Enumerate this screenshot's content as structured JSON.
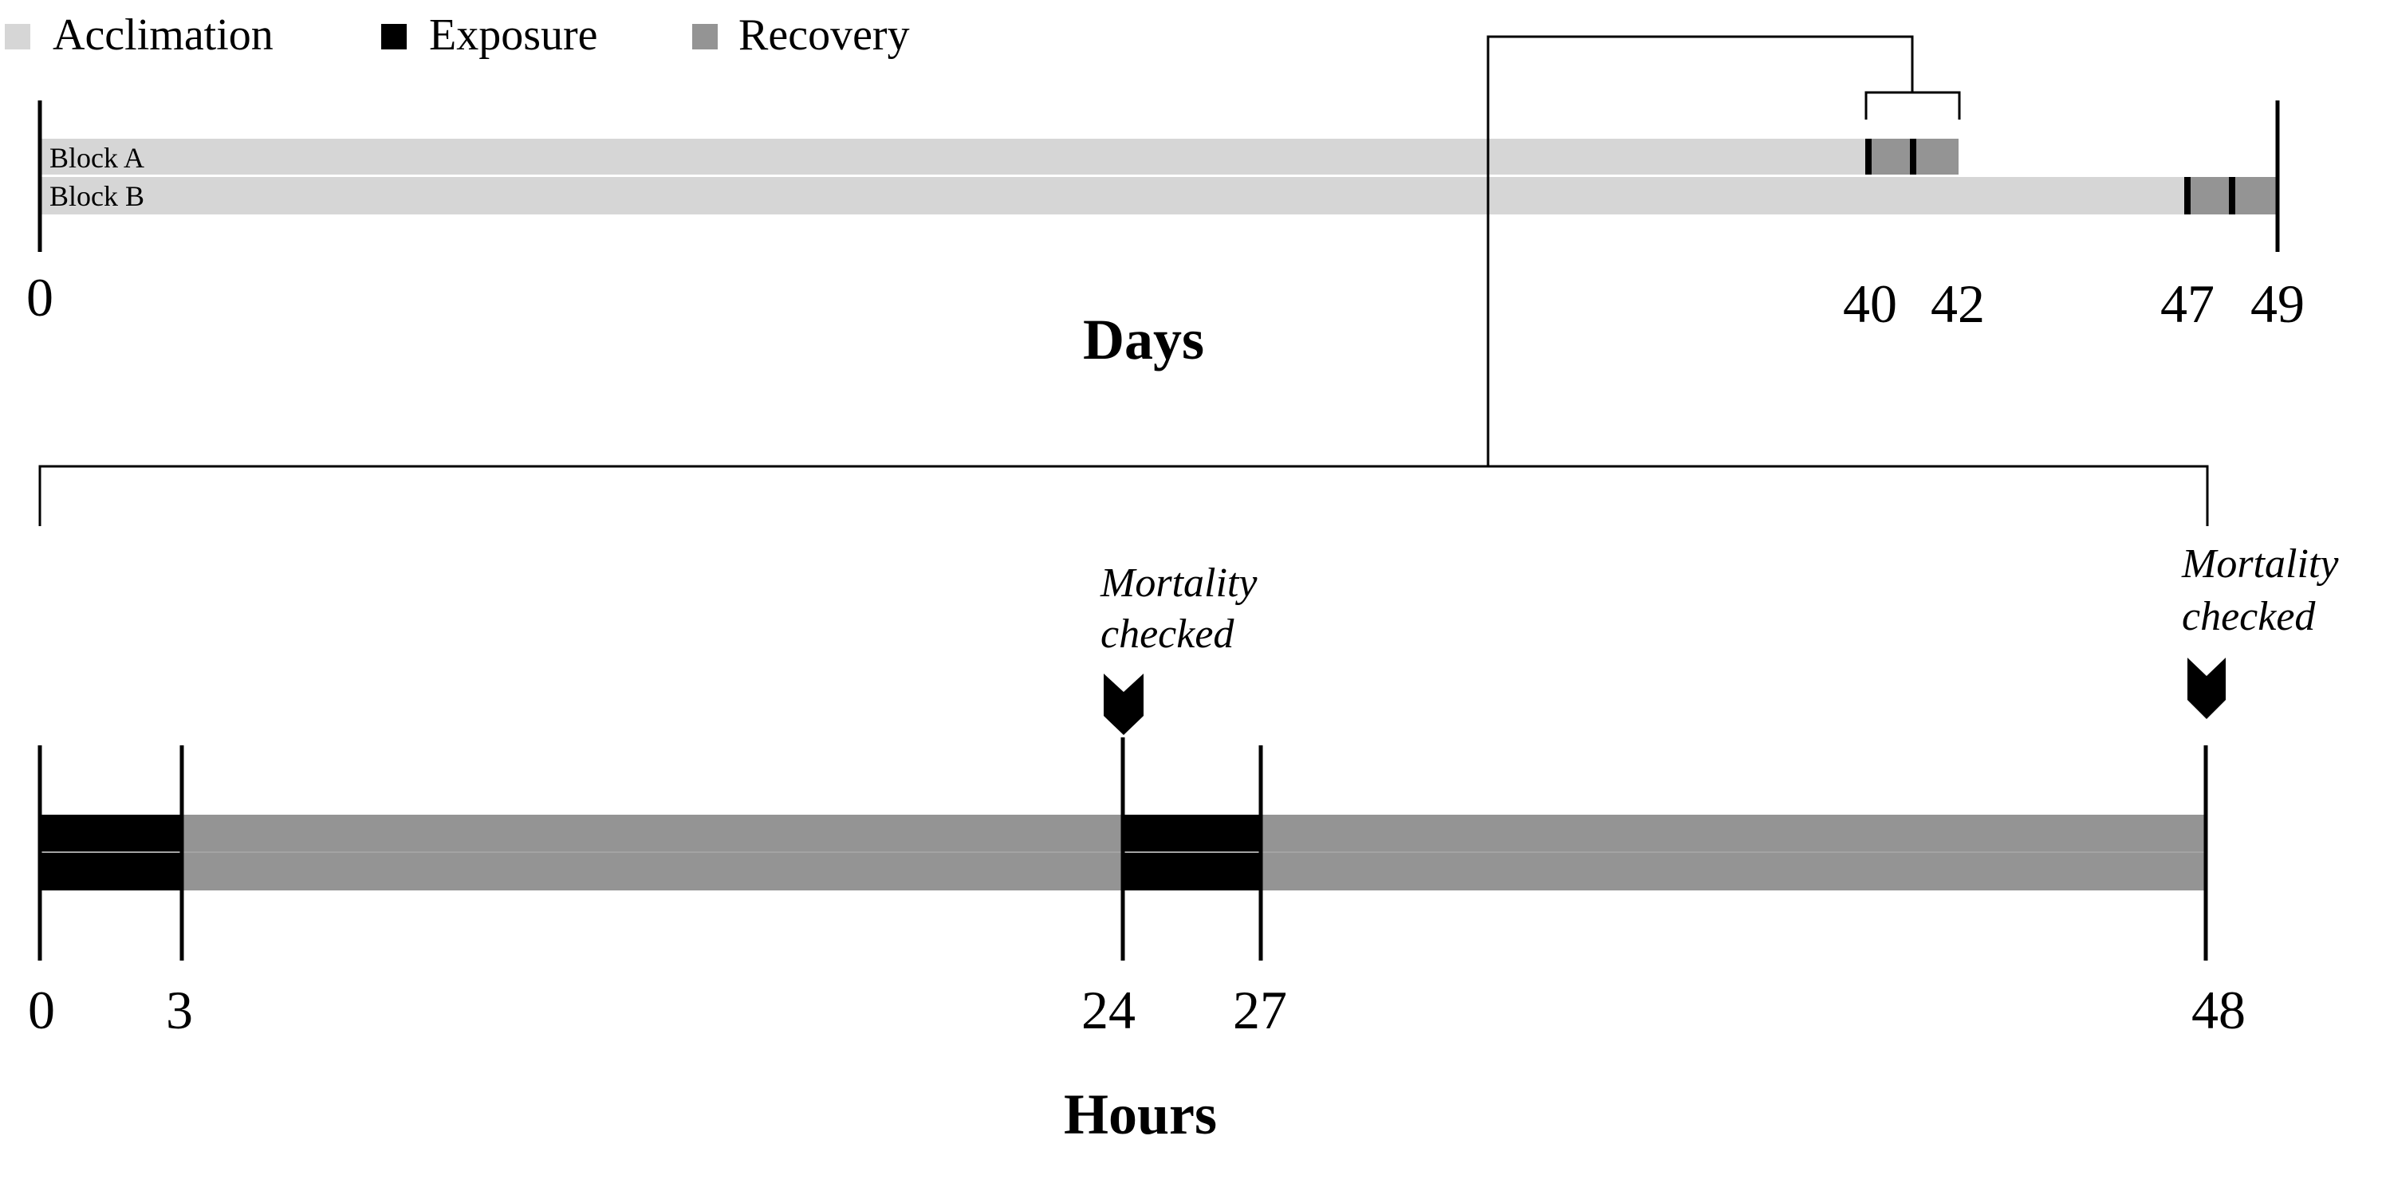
{
  "legend": [
    {
      "label": "Acclimation",
      "color": "#d6d6d6"
    },
    {
      "label": "Exposure",
      "color": "#000000"
    },
    {
      "label": "Recovery",
      "color": "#949494"
    }
  ],
  "days_timeline": {
    "axis_title": "Days",
    "domain": [
      0,
      49
    ],
    "tick_labels": [
      "0",
      "40",
      "42",
      "47",
      "49"
    ],
    "blocks": [
      {
        "label": "Block A",
        "acclimation_end": 40,
        "exposure_days": [
          40,
          41
        ],
        "recovery_end": 42
      },
      {
        "label": "Block B",
        "acclimation_end": 47,
        "exposure_days": [
          47,
          48
        ],
        "recovery_end": 49
      }
    ]
  },
  "hours_timeline": {
    "axis_title": "Hours",
    "domain": [
      0,
      48
    ],
    "tick_labels": [
      "0",
      "3",
      "24",
      "27",
      "48"
    ],
    "segments": [
      {
        "phase": "Exposure",
        "start": 0,
        "end": 3
      },
      {
        "phase": "Recovery",
        "start": 3,
        "end": 24
      },
      {
        "phase": "Exposure",
        "start": 24,
        "end": 27
      },
      {
        "phase": "Recovery",
        "start": 27,
        "end": 48
      }
    ],
    "annotations": [
      {
        "line1": "Mortality",
        "line2": "checked",
        "hour": 24
      },
      {
        "line1": "Mortality",
        "line2": "checked",
        "hour": 48
      }
    ]
  },
  "icons": {
    "marker": "chevron-down-icon"
  }
}
